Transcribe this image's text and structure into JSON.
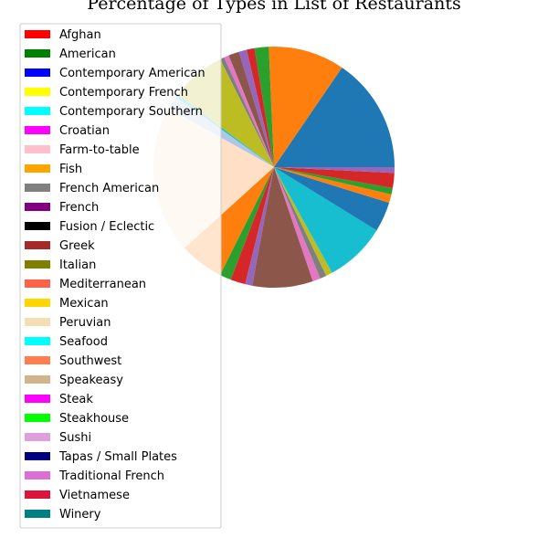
{
  "chart_data": {
    "type": "pie",
    "title": "Percentage of Types in List of Restaurants",
    "legend_position": "left",
    "slice_order": "counterclockwise",
    "slices": [
      {
        "value": 16.2,
        "color": "#1f77b4"
      },
      {
        "value": 10.7,
        "color": "#ff7f0e"
      },
      {
        "value": 2.0,
        "color": "#2ca02c"
      },
      {
        "value": 1.1,
        "color": "#d62728"
      },
      {
        "value": 1.1,
        "color": "#9467bd"
      },
      {
        "value": 1.5,
        "color": "#8c564b"
      },
      {
        "value": 0.7,
        "color": "#e377c2"
      },
      {
        "value": 0.6,
        "color": "#7f7f7f"
      },
      {
        "value": 7.7,
        "color": "#bcbd22"
      },
      {
        "value": 0.4,
        "color": "#17becf"
      },
      {
        "value": 1.9,
        "color": "#aec7e8"
      },
      {
        "value": 20.7,
        "color": "#ffe0c6"
      },
      {
        "value": 6.2,
        "color": "#ff7f0e"
      },
      {
        "value": 1.6,
        "color": "#2ca02c"
      },
      {
        "value": 2.1,
        "color": "#d62728"
      },
      {
        "value": 1.0,
        "color": "#9467bd"
      },
      {
        "value": 8.5,
        "color": "#8c564b"
      },
      {
        "value": 1.1,
        "color": "#e377c2"
      },
      {
        "value": 0.9,
        "color": "#7f7f7f"
      },
      {
        "value": 0.9,
        "color": "#bcbd22"
      },
      {
        "value": 8.6,
        "color": "#17becf"
      },
      {
        "value": 4.2,
        "color": "#1f77b4"
      },
      {
        "value": 1.2,
        "color": "#ff7f0e"
      },
      {
        "value": 0.9,
        "color": "#2ca02c"
      },
      {
        "value": 2.1,
        "color": "#d62728"
      },
      {
        "value": 0.8,
        "color": "#9467bd"
      }
    ],
    "legend": [
      {
        "label": "Afghan",
        "color": "#ff0000"
      },
      {
        "label": "American",
        "color": "#008000"
      },
      {
        "label": "Contemporary American",
        "color": "#0000ff"
      },
      {
        "label": "Contemporary French",
        "color": "#ffff00"
      },
      {
        "label": "Contemporary Southern",
        "color": "#00ffff"
      },
      {
        "label": "Croatian",
        "color": "#ff00ff"
      },
      {
        "label": "Farm-to-table",
        "color": "#ffc0cb"
      },
      {
        "label": "Fish",
        "color": "#ffa500"
      },
      {
        "label": "French American",
        "color": "#808080"
      },
      {
        "label": "French",
        "color": "#800080"
      },
      {
        "label": "Fusion / Eclectic",
        "color": "#000000"
      },
      {
        "label": "Greek",
        "color": "#a52a2a"
      },
      {
        "label": "Italian",
        "color": "#808000"
      },
      {
        "label": "Mediterranean",
        "color": "#ff6347"
      },
      {
        "label": "Mexican",
        "color": "#ffd700"
      },
      {
        "label": "Peruvian",
        "color": "#f5deb3"
      },
      {
        "label": "Seafood",
        "color": "#00ffff"
      },
      {
        "label": "Southwest",
        "color": "#ff7f50"
      },
      {
        "label": "Speakeasy",
        "color": "#d2b48c"
      },
      {
        "label": "Steak",
        "color": "#ff00ff"
      },
      {
        "label": "Steakhouse",
        "color": "#00ff00"
      },
      {
        "label": "Sushi",
        "color": "#dda0dd"
      },
      {
        "label": "Tapas / Small Plates",
        "color": "#000080"
      },
      {
        "label": "Traditional French",
        "color": "#da70d6"
      },
      {
        "label": "Vietnamese",
        "color": "#dc143c"
      },
      {
        "label": "Winery",
        "color": "#008080"
      }
    ]
  }
}
